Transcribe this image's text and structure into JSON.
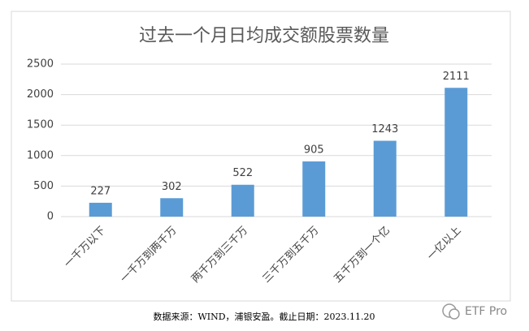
{
  "chart_data": {
    "type": "bar",
    "title": "过去一个月日均成交额股票数量",
    "categories": [
      "一千万以下",
      "一千万到两千万",
      "两千万到三千万",
      "三千万到五千万",
      "五千万到一个亿",
      "一亿以上"
    ],
    "values": [
      227,
      302,
      522,
      905,
      1243,
      2111
    ],
    "color": "#5b9bd5",
    "ylim": [
      0,
      2500
    ],
    "yticks": [
      0,
      500,
      1000,
      1500,
      2000,
      2500
    ],
    "grid": true,
    "source": "数据来源：WIND，浦银安盈。截止日期：2023.11.20"
  },
  "watermark": "ETF Pro"
}
